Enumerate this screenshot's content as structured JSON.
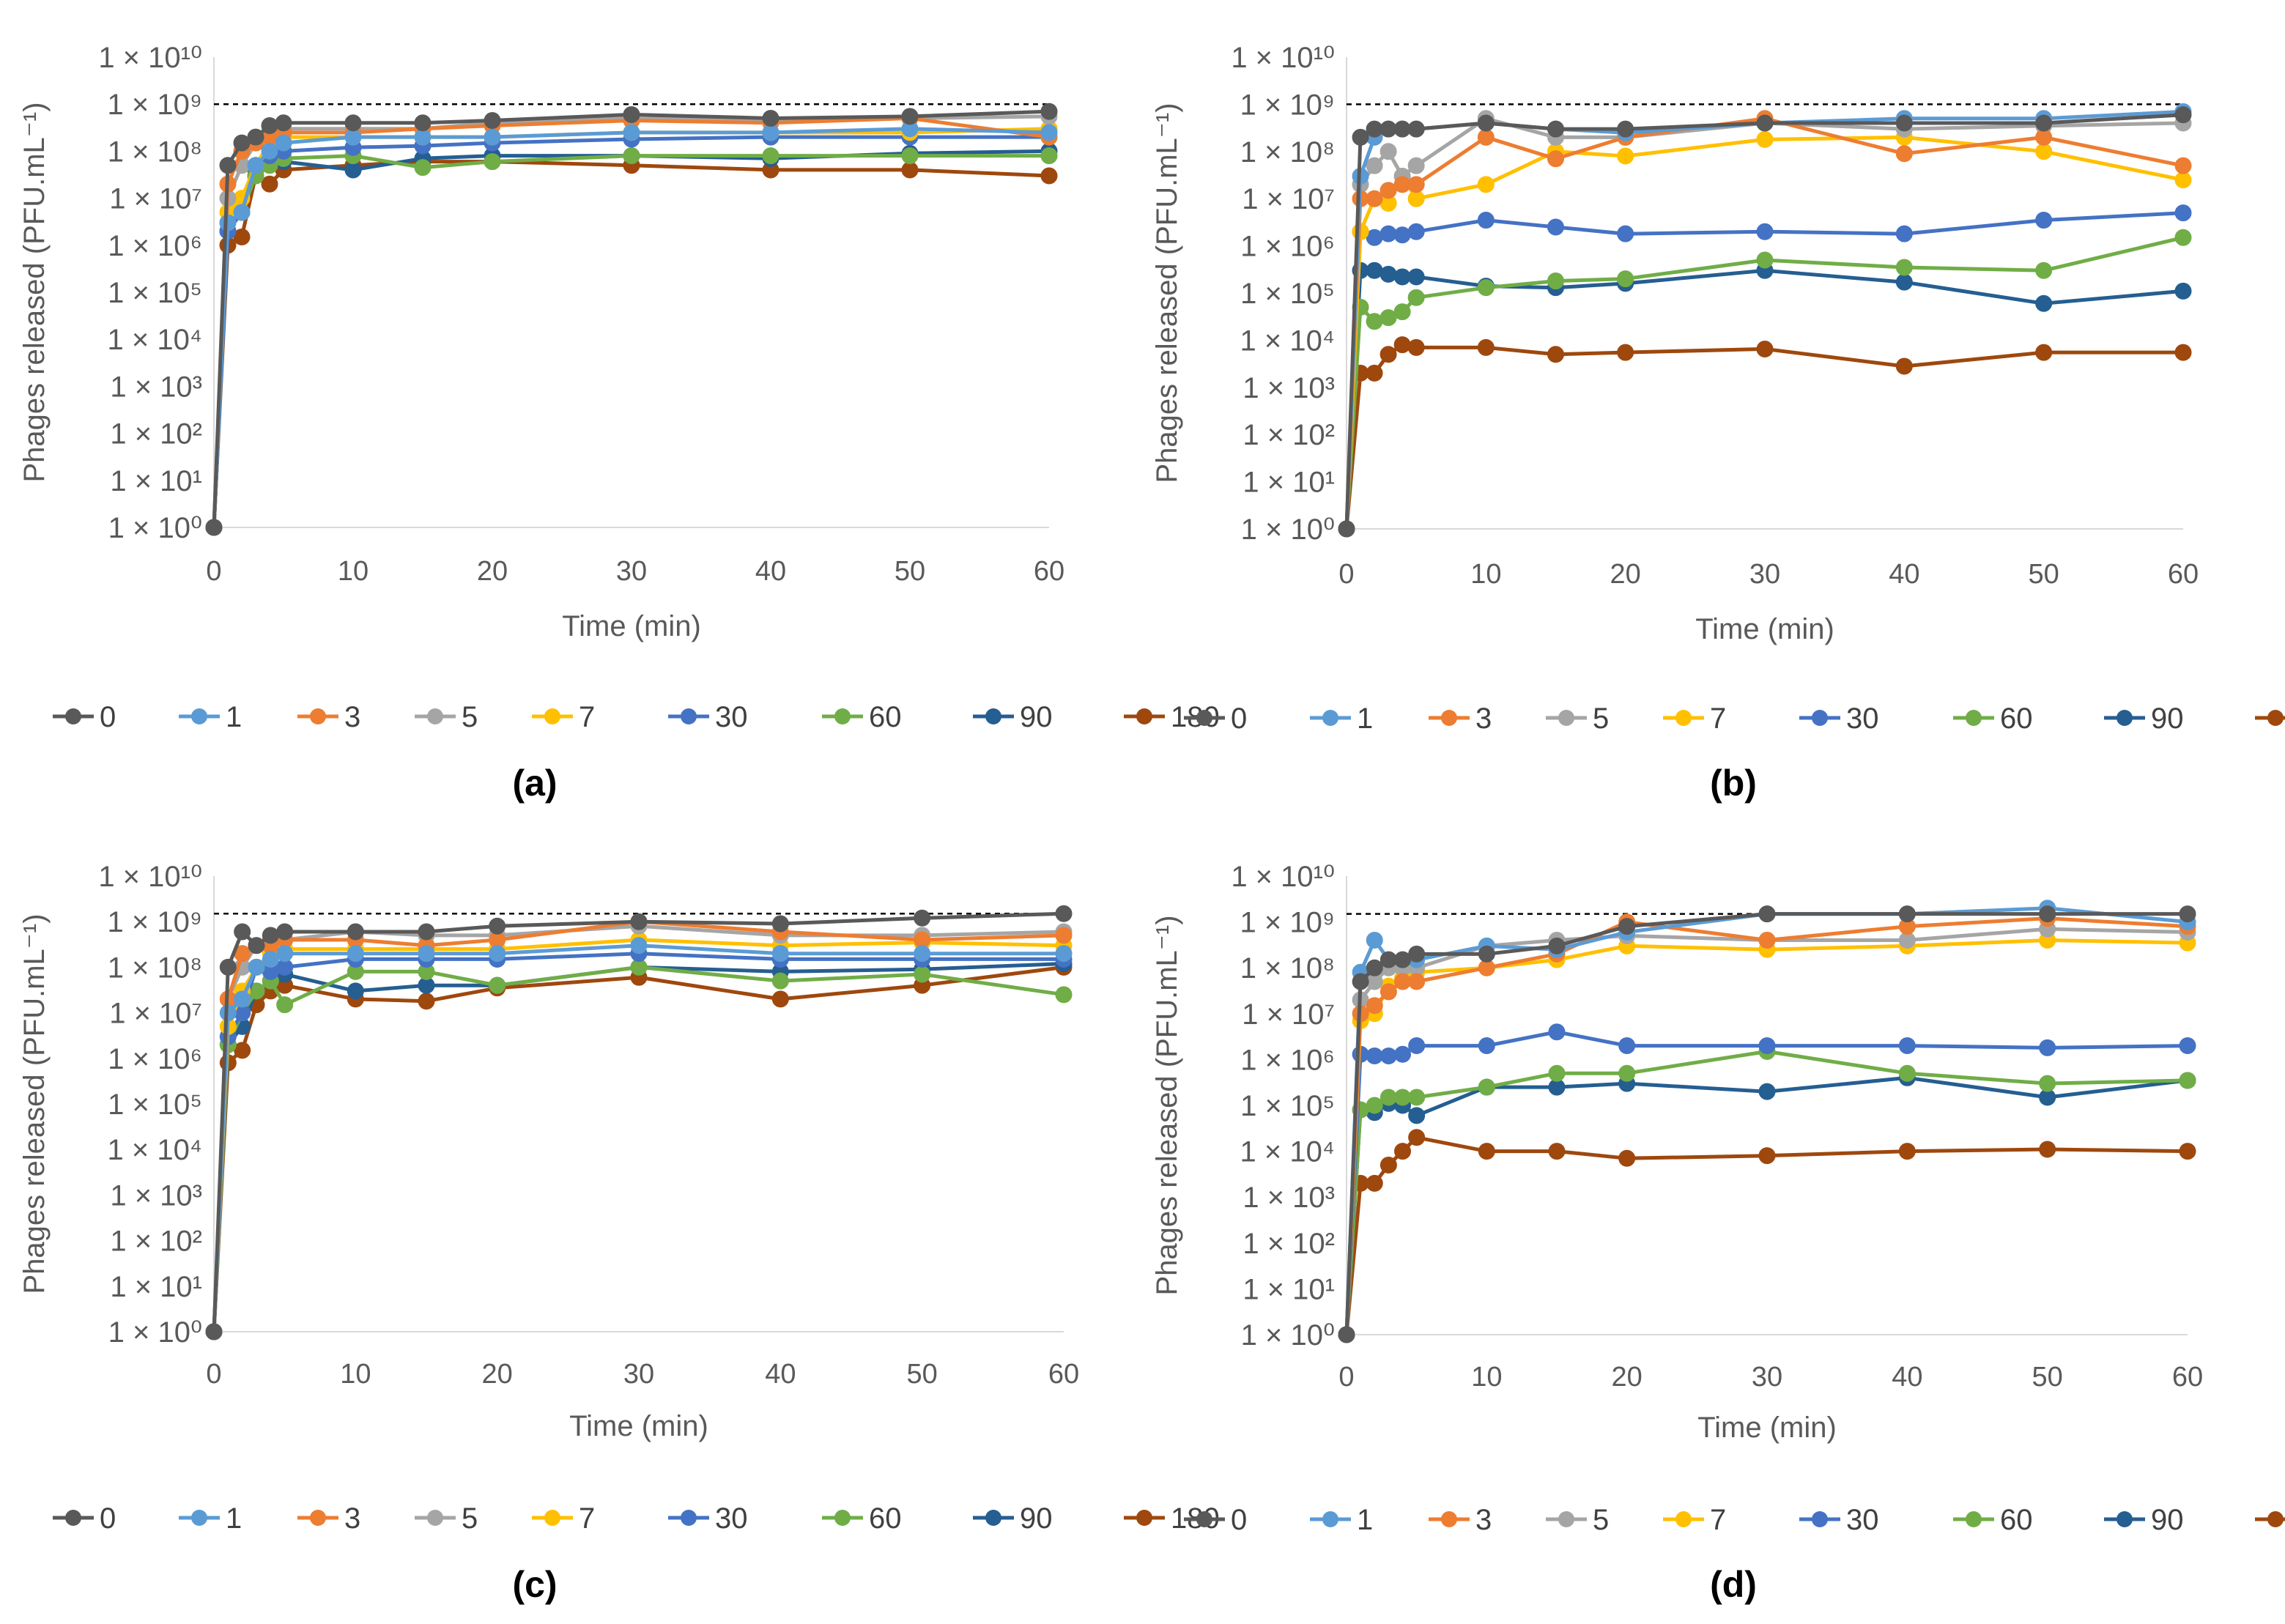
{
  "colors": {
    "0": "#595959",
    "1": "#5B9BD5",
    "3": "#ED7D31",
    "5": "#A5A5A5",
    "7": "#FFC000",
    "30": "#4472C4",
    "60": "#70AD47",
    "90": "#255E91",
    "180": "#9E480E",
    "axis": "#D9D9D9",
    "text": "#595959",
    "reference_line": "#000000"
  },
  "legend": [
    "0",
    "1",
    "3",
    "5",
    "7",
    "30",
    "60",
    "90",
    "180"
  ],
  "chart_data": [
    {
      "type": "line",
      "panel_label": "(a)",
      "xlabel": "Time (min)",
      "ylabel": "Phages released (PFU.mL⁻¹)",
      "yscale": "log",
      "ylim": [
        1,
        10000000000.0
      ],
      "xlim": [
        0,
        60
      ],
      "x_ticks": [
        0,
        10,
        20,
        30,
        40,
        50,
        60
      ],
      "y_tick_exponents": [
        0,
        1,
        2,
        3,
        4,
        5,
        6,
        7,
        8,
        9,
        10
      ],
      "reference_line": 1000000000.0,
      "x": [
        0,
        1,
        2,
        3,
        4,
        5,
        10,
        15,
        20,
        30,
        40,
        50,
        60
      ],
      "series": [
        {
          "name": "0",
          "values": [
            1,
            50000000.0,
            150000000.0,
            200000000.0,
            350000000.0,
            400000000.0,
            400000000.0,
            400000000.0,
            450000000.0,
            600000000.0,
            500000000.0,
            550000000.0,
            700000000.0
          ]
        },
        {
          "name": "1",
          "values": [
            1,
            3000000.0,
            5000000.0,
            50000000.0,
            100000000.0,
            150000000.0,
            200000000.0,
            200000000.0,
            200000000.0,
            250000000.0,
            250000000.0,
            300000000.0,
            250000000.0
          ]
        },
        {
          "name": "3",
          "values": [
            1,
            20000000.0,
            100000000.0,
            150000000.0,
            200000000.0,
            250000000.0,
            250000000.0,
            300000000.0,
            350000000.0,
            450000000.0,
            400000000.0,
            500000000.0,
            200000000.0
          ]
        },
        {
          "name": "5",
          "values": [
            1,
            10000000.0,
            50000000.0,
            150000000.0,
            250000000.0,
            300000000.0,
            300000000.0,
            300000000.0,
            400000000.0,
            500000000.0,
            450000000.0,
            500000000.0,
            550000000.0
          ]
        },
        {
          "name": "7",
          "values": [
            1,
            5000000.0,
            10000000.0,
            50000000.0,
            150000000.0,
            200000000.0,
            200000000.0,
            200000000.0,
            200000000.0,
            250000000.0,
            250000000.0,
            250000000.0,
            300000000.0
          ]
        },
        {
          "name": "30",
          "values": [
            1,
            2000000.0,
            5000000.0,
            50000000.0,
            80000000.0,
            100000000.0,
            120000000.0,
            130000000.0,
            150000000.0,
            180000000.0,
            200000000.0,
            200000000.0,
            200000000.0
          ]
        },
        {
          "name": "60",
          "values": [
            1,
            3000000.0,
            5000000.0,
            30000000.0,
            50000000.0,
            70000000.0,
            80000000.0,
            45000000.0,
            60000000.0,
            80000000.0,
            80000000.0,
            80000000.0,
            80000000.0
          ]
        },
        {
          "name": "90",
          "values": [
            1,
            2000000.0,
            5000000.0,
            40000000.0,
            60000000.0,
            60000000.0,
            40000000.0,
            70000000.0,
            80000000.0,
            80000000.0,
            70000000.0,
            90000000.0,
            100000000.0
          ]
        },
        {
          "name": "180",
          "values": [
            1,
            1000000.0,
            1500000.0,
            30000000.0,
            20000000.0,
            40000000.0,
            50000000.0,
            60000000.0,
            60000000.0,
            50000000.0,
            40000000.0,
            40000000.0,
            30000000.0
          ]
        }
      ]
    },
    {
      "type": "line",
      "panel_label": "(b)",
      "xlabel": "Time (min)",
      "ylabel": "Phages released (PFU.mL⁻¹)",
      "yscale": "log",
      "ylim": [
        1,
        10000000000.0
      ],
      "xlim": [
        0,
        60
      ],
      "x_ticks": [
        0,
        10,
        20,
        30,
        40,
        50,
        60
      ],
      "y_tick_exponents": [
        0,
        1,
        2,
        3,
        4,
        5,
        6,
        7,
        8,
        9,
        10
      ],
      "reference_line": 1000000000.0,
      "x": [
        0,
        1,
        2,
        3,
        4,
        5,
        10,
        15,
        20,
        30,
        40,
        50,
        60
      ],
      "series": [
        {
          "name": "0",
          "values": [
            1,
            200000000.0,
            300000000.0,
            300000000.0,
            300000000.0,
            300000000.0,
            400000000.0,
            300000000.0,
            300000000.0,
            400000000.0,
            400000000.0,
            400000000.0,
            600000000.0
          ]
        },
        {
          "name": "1",
          "values": [
            1,
            30000000.0,
            200000000.0,
            300000000.0,
            300000000.0,
            300000000.0,
            400000000.0,
            300000000.0,
            250000000.0,
            400000000.0,
            500000000.0,
            500000000.0,
            700000000.0
          ]
        },
        {
          "name": "3",
          "values": [
            1,
            10000000.0,
            10000000.0,
            15000000.0,
            20000000.0,
            20000000.0,
            200000000.0,
            70000000.0,
            200000000.0,
            500000000.0,
            90000000.0,
            200000000.0,
            50000000.0
          ]
        },
        {
          "name": "5",
          "values": [
            1,
            20000000.0,
            50000000.0,
            100000000.0,
            30000000.0,
            50000000.0,
            500000000.0,
            200000000.0,
            200000000.0,
            400000000.0,
            300000000.0,
            350000000.0,
            400000000.0
          ]
        },
        {
          "name": "7",
          "values": [
            1,
            2000000.0,
            10000000.0,
            8000000.0,
            30000000.0,
            10000000.0,
            20000000.0,
            100000000.0,
            80000000.0,
            180000000.0,
            200000000.0,
            100000000.0,
            25000000.0
          ]
        },
        {
          "name": "30",
          "values": [
            1,
            2000000.0,
            1500000.0,
            1800000.0,
            1700000.0,
            2000000.0,
            3500000.0,
            2500000.0,
            1800000.0,
            2000000.0,
            1800000.0,
            3500000.0,
            5000000.0
          ]
        },
        {
          "name": "60",
          "values": [
            1,
            50000.0,
            25000.0,
            30000.0,
            40000.0,
            80000.0,
            130000.0,
            180000.0,
            200000.0,
            500000.0,
            350000.0,
            300000.0,
            1500000.0
          ]
        },
        {
          "name": "90",
          "values": [
            1,
            300000.0,
            300000.0,
            250000.0,
            220000.0,
            220000.0,
            140000.0,
            130000.0,
            160000.0,
            300000.0,
            170000.0,
            60000.0,
            110000.0
          ]
        },
        {
          "name": "180",
          "values": [
            1,
            2000.0,
            2000.0,
            5000.0,
            8000.0,
            7000.0,
            7000.0,
            5000.0,
            5500.0,
            6500.0,
            2800.0,
            5500.0,
            5500.0
          ]
        }
      ]
    },
    {
      "type": "line",
      "panel_label": "(c)",
      "xlabel": "Time (min)",
      "ylabel": "Phages released (PFU.mL⁻¹)",
      "yscale": "log",
      "ylim": [
        1,
        10000000000.0
      ],
      "xlim": [
        0,
        60
      ],
      "x_ticks": [
        0,
        10,
        20,
        30,
        40,
        50,
        60
      ],
      "y_tick_exponents": [
        0,
        1,
        2,
        3,
        4,
        5,
        6,
        7,
        8,
        9,
        10
      ],
      "reference_line": 1500000000.0,
      "x": [
        0,
        1,
        2,
        3,
        4,
        5,
        10,
        15,
        20,
        30,
        40,
        50,
        60
      ],
      "series": [
        {
          "name": "0",
          "values": [
            1,
            100000000.0,
            600000000.0,
            300000000.0,
            500000000.0,
            600000000.0,
            600000000.0,
            600000000.0,
            800000000.0,
            1000000000.0,
            900000000.0,
            1200000000.0,
            1500000000.0
          ]
        },
        {
          "name": "1",
          "values": [
            1,
            10000000.0,
            20000000.0,
            100000000.0,
            150000000.0,
            200000000.0,
            200000000.0,
            200000000.0,
            200000000.0,
            300000000.0,
            200000000.0,
            200000000.0,
            200000000.0
          ]
        },
        {
          "name": "3",
          "values": [
            1,
            20000000.0,
            200000000.0,
            300000000.0,
            300000000.0,
            400000000.0,
            400000000.0,
            300000000.0,
            400000000.0,
            1000000000.0,
            600000000.0,
            400000000.0,
            500000000.0
          ]
        },
        {
          "name": "5",
          "values": [
            1,
            20000000.0,
            100000000.0,
            300000000.0,
            400000000.0,
            400000000.0,
            600000000.0,
            500000000.0,
            500000000.0,
            800000000.0,
            500000000.0,
            500000000.0,
            600000000.0
          ]
        },
        {
          "name": "7",
          "values": [
            1,
            5000000.0,
            30000000.0,
            100000000.0,
            200000000.0,
            250000000.0,
            250000000.0,
            250000000.0,
            250000000.0,
            400000000.0,
            300000000.0,
            350000000.0,
            300000000.0
          ]
        },
        {
          "name": "30",
          "values": [
            1,
            3000000.0,
            10000000.0,
            100000000.0,
            80000000.0,
            100000000.0,
            150000000.0,
            150000000.0,
            150000000.0,
            200000000.0,
            150000000.0,
            150000000.0,
            150000000.0
          ]
        },
        {
          "name": "60",
          "values": [
            1,
            2000000.0,
            10000000.0,
            30000000.0,
            50000000.0,
            15000000.0,
            80000000.0,
            80000000.0,
            40000000.0,
            100000000.0,
            50000000.0,
            70000000.0,
            25000000.0
          ]
        },
        {
          "name": "90",
          "values": [
            1,
            2000000.0,
            5000000.0,
            30000000.0,
            50000000.0,
            70000000.0,
            30000000.0,
            40000000.0,
            40000000.0,
            100000000.0,
            80000000.0,
            90000000.0,
            120000000.0
          ]
        },
        {
          "name": "180",
          "values": [
            1,
            800000.0,
            1500000.0,
            15000000.0,
            30000000.0,
            40000000.0,
            20000000.0,
            18000000.0,
            35000000.0,
            60000000.0,
            20000000.0,
            40000000.0,
            100000000.0
          ]
        }
      ]
    },
    {
      "type": "line",
      "panel_label": "(d)",
      "xlabel": "Time (min)",
      "ylabel": "Phages released (PFU.mL⁻¹)",
      "yscale": "log",
      "ylim": [
        1,
        10000000000.0
      ],
      "xlim": [
        0,
        60
      ],
      "x_ticks": [
        0,
        10,
        20,
        30,
        40,
        50,
        60
      ],
      "y_tick_exponents": [
        0,
        1,
        2,
        3,
        4,
        5,
        6,
        7,
        8,
        9,
        10
      ],
      "reference_line": 1500000000.0,
      "x": [
        0,
        1,
        2,
        3,
        4,
        5,
        10,
        15,
        20,
        30,
        40,
        50,
        60
      ],
      "series": [
        {
          "name": "0",
          "values": [
            1,
            50000000.0,
            100000000.0,
            150000000.0,
            150000000.0,
            200000000.0,
            200000000.0,
            300000000.0,
            800000000.0,
            1500000000.0,
            1500000000.0,
            1500000000.0,
            1500000000.0
          ]
        },
        {
          "name": "1",
          "values": [
            1,
            80000000.0,
            400000000.0,
            150000000.0,
            150000000.0,
            150000000.0,
            300000000.0,
            250000000.0,
            600000000.0,
            1500000000.0,
            1500000000.0,
            2000000000.0,
            1000000000.0
          ]
        },
        {
          "name": "3",
          "values": [
            1,
            10000000.0,
            15000000.0,
            30000000.0,
            50000000.0,
            50000000.0,
            100000000.0,
            200000000.0,
            1000000000.0,
            400000000.0,
            800000000.0,
            1200000000.0,
            800000000.0
          ]
        },
        {
          "name": "5",
          "values": [
            1,
            20000000.0,
            50000000.0,
            100000000.0,
            100000000.0,
            100000000.0,
            300000000.0,
            400000000.0,
            500000000.0,
            400000000.0,
            400000000.0,
            700000000.0,
            600000000.0
          ]
        },
        {
          "name": "7",
          "values": [
            1,
            7000000.0,
            10000000.0,
            40000000.0,
            60000000.0,
            80000000.0,
            100000000.0,
            150000000.0,
            300000000.0,
            250000000.0,
            300000000.0,
            400000000.0,
            350000000.0
          ]
        },
        {
          "name": "30",
          "values": [
            1,
            1300000.0,
            1200000.0,
            1200000.0,
            1300000.0,
            2000000.0,
            2000000.0,
            4000000.0,
            2000000.0,
            2000000.0,
            2000000.0,
            1800000.0,
            2000000.0
          ]
        },
        {
          "name": "60",
          "values": [
            1,
            80000.0,
            100000.0,
            150000.0,
            150000.0,
            150000.0,
            250000.0,
            500000.0,
            500000.0,
            1500000.0,
            500000.0,
            300000.0,
            350000.0
          ]
        },
        {
          "name": "90",
          "values": [
            1,
            80000.0,
            70000.0,
            110000.0,
            100000.0,
            60000.0,
            250000.0,
            250000.0,
            300000.0,
            200000.0,
            400000.0,
            150000.0,
            350000.0
          ]
        },
        {
          "name": "180",
          "values": [
            1,
            2000.0,
            2000.0,
            5000.0,
            10000.0,
            20000.0,
            10000.0,
            10000.0,
            7000.0,
            8000.0,
            10000.0,
            11000.0,
            10000.0
          ]
        }
      ]
    }
  ]
}
